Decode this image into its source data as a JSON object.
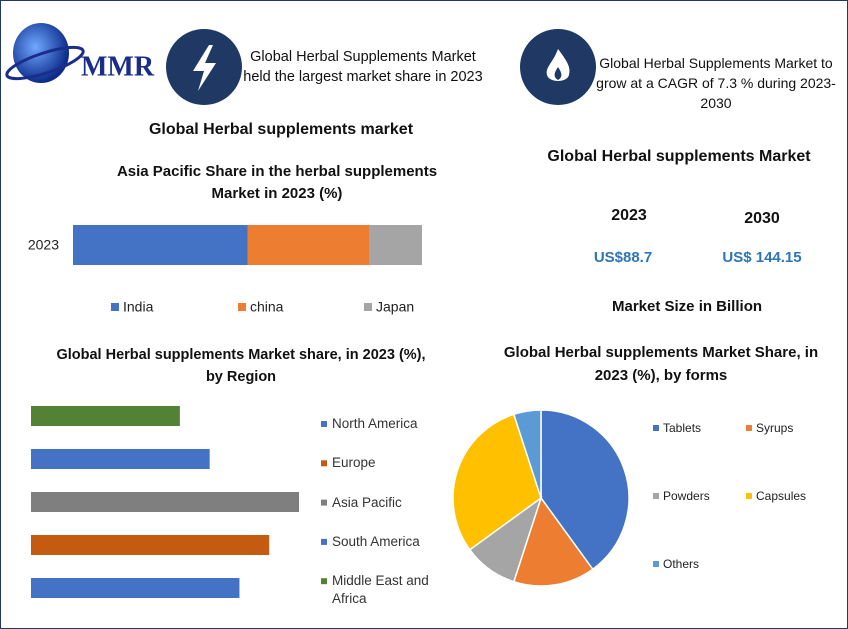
{
  "header": {
    "logo": "MMR",
    "info_left": "Global Herbal Supplements Market held the largest market share in 2023",
    "info_right": "Global Herbal Supplements Market to grow at a CAGR of 7.3 % during 2023-2030"
  },
  "section_title": "Global Herbal supplements market",
  "market": {
    "title": "Global Herbal supplements Market",
    "years": [
      "2023",
      "2030"
    ],
    "sizes": [
      "US$88.7",
      "US$ 144.15"
    ],
    "caption": "Market Size in Billion"
  },
  "chart_data": [
    {
      "type": "bar",
      "orientation": "horizontal",
      "stacked": true,
      "title": "Asia Pacific Share in the herbal supplements Market in 2023 (%)",
      "categories": [
        "2023"
      ],
      "series": [
        {
          "name": "India",
          "color": "#4472c4",
          "values": [
            50
          ]
        },
        {
          "name": "china",
          "color": "#ed7d31",
          "values": [
            35
          ]
        },
        {
          "name": "Japan",
          "color": "#a5a5a5",
          "values": [
            15
          ]
        }
      ],
      "legend": "bottom"
    },
    {
      "type": "bar",
      "orientation": "horizontal",
      "stacked": false,
      "title": "Global Herbal supplements  Market share, in 2023 (%), by Region",
      "categories": [
        "North America",
        "Europe",
        "Asia Pacific",
        "South America",
        "Middle East and Africa"
      ],
      "values": [
        21,
        24,
        27,
        18,
        15
      ],
      "colors": [
        "#4472c4",
        "#c55a11",
        "#7f7f7f",
        "#4472c4",
        "#548235"
      ],
      "legend": "right"
    },
    {
      "type": "pie",
      "title": "Global Herbal supplements  Market Share, in 2023 (%), by forms",
      "categories": [
        "Tablets",
        "Syrups",
        "Powders",
        "Capsules",
        "Others"
      ],
      "values": [
        40,
        15,
        10,
        30,
        5
      ],
      "colors": [
        "#4472c4",
        "#ed7d31",
        "#a5a5a5",
        "#ffc000",
        "#5b9bd5"
      ],
      "legend": "right"
    }
  ]
}
